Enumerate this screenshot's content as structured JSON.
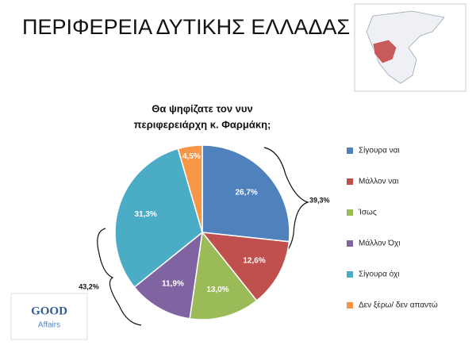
{
  "header": {
    "title": "ΠΕΡΙΦΕΡΕΙΑ ΔΥΤΙΚΗΣ ΕΛΛΑΔΑΣ"
  },
  "logo": {
    "line1": "GOOD",
    "line2": "Affairs"
  },
  "chart_data": {
    "type": "pie",
    "title": [
      "Θα ψηφίζατε τον νυν",
      "περιφερειάρχη κ. Φαρμάκη;"
    ],
    "categories": [
      "Σίγουρα ναι",
      "Μάλλον ναι",
      "Ίσως",
      "Μάλλον Όχι",
      "Σίγουρα όχι",
      "Δεν ξέρω/ δεν απαντώ"
    ],
    "values": [
      26.7,
      12.6,
      13.0,
      11.9,
      31.3,
      4.5
    ],
    "value_labels": [
      "26,7%",
      "12,6%",
      "13,0%",
      "11,9%",
      "31,3%",
      "4,5%"
    ],
    "colors": [
      "#4f81bd",
      "#c0504d",
      "#9bbb59",
      "#8064a2",
      "#4bacc6",
      "#f79646"
    ],
    "legend": "right",
    "annotations": [
      "39,3%",
      "43,2%"
    ]
  }
}
